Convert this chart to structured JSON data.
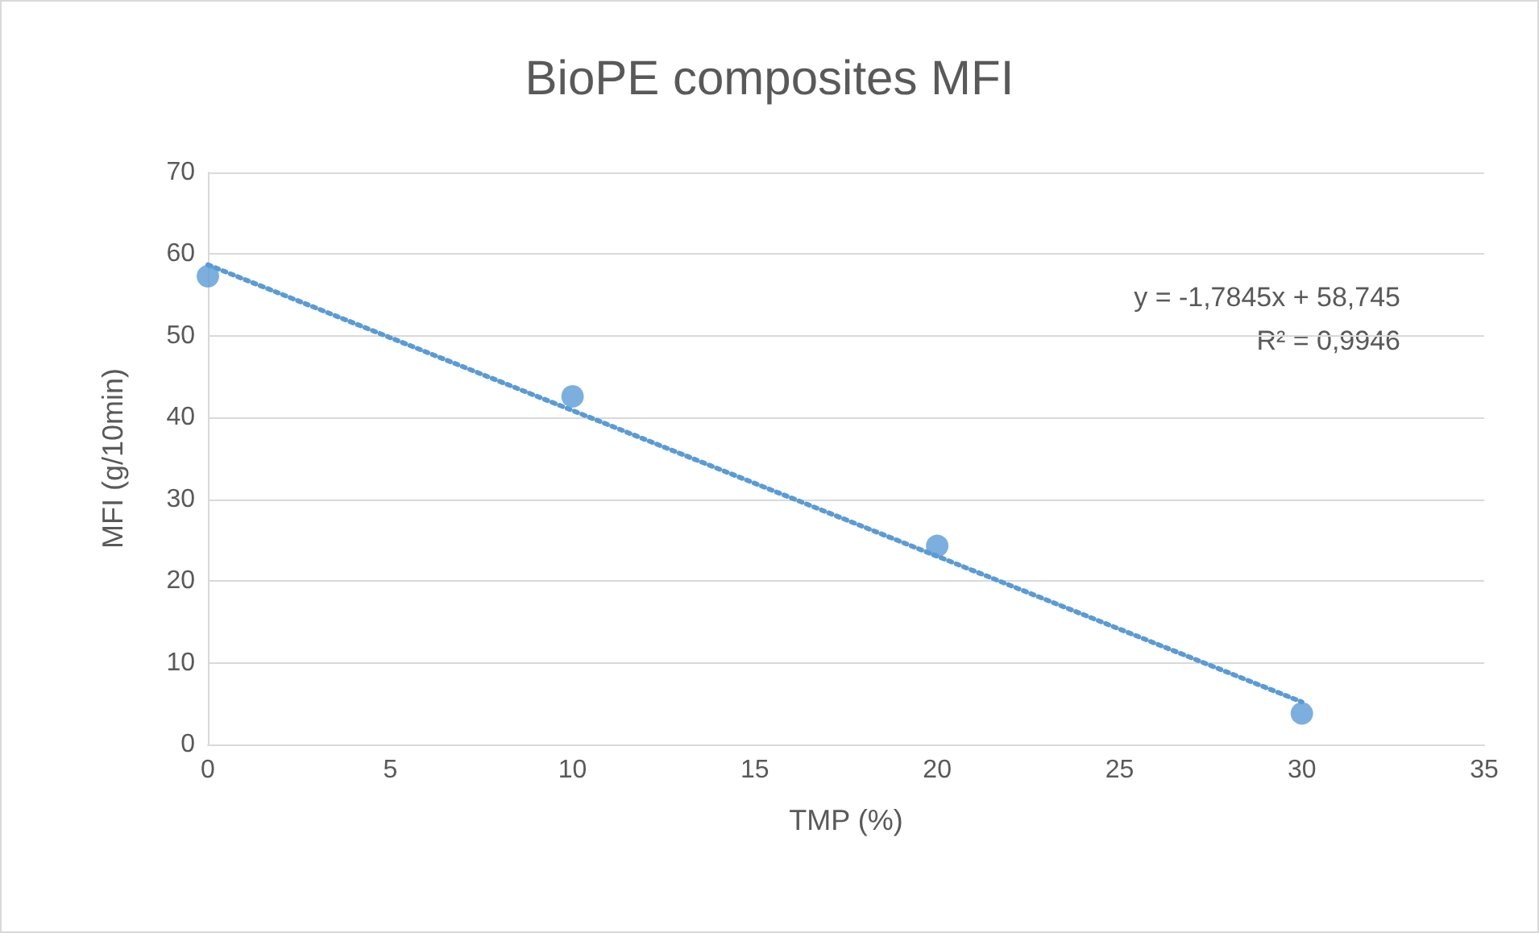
{
  "chart_data": {
    "type": "scatter",
    "title": "BioPE composites MFI",
    "xlabel": "TMP (%)",
    "ylabel": "MFI (g/10min)",
    "x": [
      0,
      10,
      20,
      30
    ],
    "series": [
      {
        "color": "#5b9bd5",
        "values": [
          57.3,
          42.6,
          24.3,
          3.8
        ],
        "marker": "circle"
      },
      {
        "type": "line",
        "color": "#5b9bd5",
        "x": [
          0,
          30
        ],
        "values": [
          58.7,
          5.2
        ],
        "line_style": "dotted",
        "marker": "none"
      }
    ],
    "xlim": [
      0,
      35
    ],
    "xticks": [
      0,
      5,
      10,
      15,
      20,
      25,
      30,
      35
    ],
    "ylim": [
      0,
      70
    ],
    "yticks": [
      0,
      10,
      20,
      30,
      40,
      50,
      60,
      70
    ],
    "grid": "y",
    "annotations": [
      "y = -1,7845x + 58,745",
      "R² = 0,9946"
    ]
  }
}
